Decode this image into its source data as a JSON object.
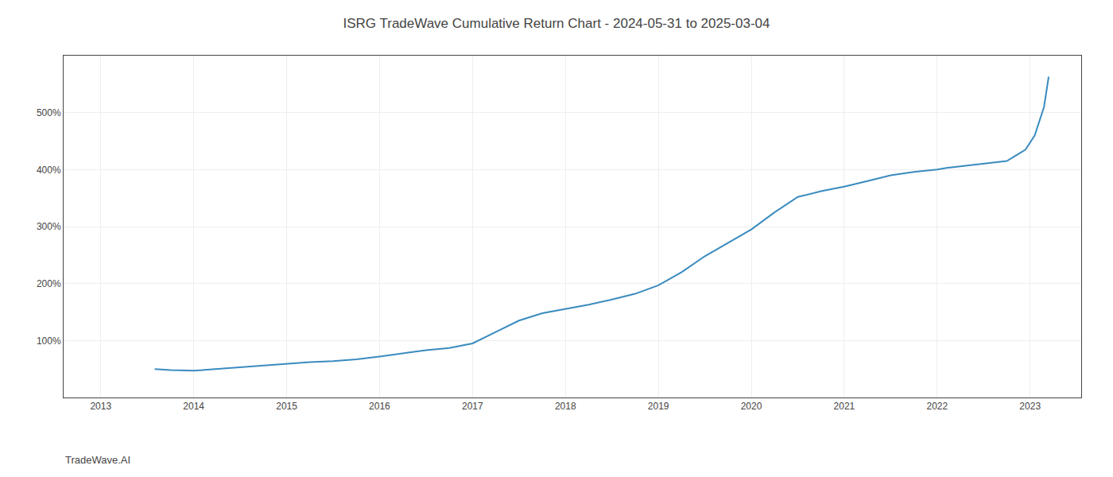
{
  "chart_data": {
    "type": "line",
    "title": "ISRG TradeWave Cumulative Return Chart - 2024-05-31 to 2025-03-04",
    "annotations": [
      "TradeWave.AI"
    ],
    "x": [
      2013.58,
      2013.75,
      2014.0,
      2014.25,
      2014.5,
      2014.75,
      2015.0,
      2015.25,
      2015.5,
      2015.75,
      2016.0,
      2016.25,
      2016.5,
      2016.75,
      2017.0,
      2017.25,
      2017.5,
      2017.75,
      2018.0,
      2018.25,
      2018.5,
      2018.75,
      2019.0,
      2019.25,
      2019.5,
      2019.75,
      2020.0,
      2020.25,
      2020.5,
      2020.75,
      2021.0,
      2021.25,
      2021.5,
      2021.75,
      2022.0,
      2022.1,
      2022.2,
      2022.3,
      2022.4,
      2022.5,
      2022.6,
      2022.75,
      2022.85,
      2022.95,
      2023.05,
      2023.15,
      2023.2
    ],
    "values": [
      50,
      48,
      47,
      50,
      53,
      57,
      60,
      62,
      64,
      67,
      72,
      78,
      83,
      87,
      95,
      115,
      135,
      148,
      155,
      163,
      172,
      182,
      197,
      220,
      248,
      272,
      295,
      325,
      352,
      362,
      370,
      380,
      390,
      396,
      400,
      403,
      405,
      407,
      409,
      410,
      412,
      415,
      425,
      435,
      460,
      510,
      563
    ],
    "color": "#3a8bbf",
    "xlim": [
      2012.6,
      2023.55
    ],
    "xticks": [
      2013,
      2014,
      2015,
      2016,
      2017,
      2018,
      2019,
      2020,
      2021,
      2022,
      2023
    ],
    "ylim": [
      0,
      600
    ],
    "yticks": [
      {
        "value": 100,
        "label": "100%"
      },
      {
        "value": 200,
        "label": "200%"
      },
      {
        "value": 300,
        "label": "300%"
      },
      {
        "value": 400,
        "label": "400%"
      },
      {
        "value": 500,
        "label": "500%"
      }
    ],
    "grid": true
  }
}
